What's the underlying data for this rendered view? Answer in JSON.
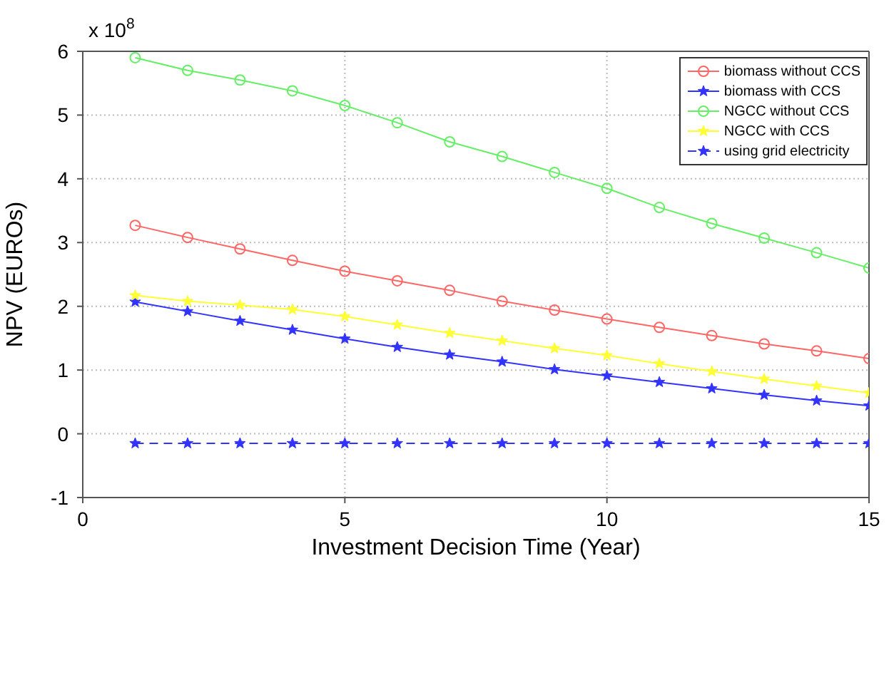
{
  "chart_data": {
    "type": "line",
    "xlabel": "Investment Decision Time (Year)",
    "ylabel": "NPV (EUROs)",
    "annotations": [
      "x 10$^{8}$"
    ],
    "x": [
      1,
      2,
      3,
      4,
      5,
      6,
      7,
      8,
      9,
      10,
      11,
      12,
      13,
      14,
      15
    ],
    "xlim": [
      0,
      15
    ],
    "xticks": [
      0,
      5,
      10,
      15
    ],
    "ylim": [
      -1,
      6
    ],
    "yticks": [
      -1,
      0,
      1,
      2,
      3,
      4,
      5,
      6
    ],
    "grid": true,
    "legend": "top right",
    "series": [
      {
        "name": "biomass without CCS",
        "color": "#ff6666",
        "marker": "circle",
        "line_style": "solid",
        "values": [
          3.27,
          3.08,
          2.9,
          2.72,
          2.55,
          2.4,
          2.25,
          2.08,
          1.94,
          1.8,
          1.67,
          1.54,
          1.41,
          1.3,
          1.18
        ]
      },
      {
        "name": "biomass with CCS",
        "color": "#3333ff",
        "marker": "star",
        "line_style": "solid",
        "values": [
          2.07,
          1.92,
          1.77,
          1.63,
          1.49,
          1.36,
          1.24,
          1.13,
          1.01,
          0.91,
          0.81,
          0.71,
          0.61,
          0.52,
          0.44
        ]
      },
      {
        "name": "NGCC without CCS",
        "color": "#66ee66",
        "marker": "circle",
        "line_style": "solid",
        "values": [
          5.9,
          5.7,
          5.55,
          5.38,
          5.15,
          4.88,
          4.58,
          4.35,
          4.1,
          3.85,
          3.55,
          3.3,
          3.07,
          2.84,
          2.6
        ]
      },
      {
        "name": "NGCC with CCS",
        "color": "#ffff33",
        "marker": "star",
        "line_style": "solid",
        "values": [
          2.17,
          2.08,
          2.02,
          1.95,
          1.84,
          1.71,
          1.58,
          1.46,
          1.34,
          1.23,
          1.1,
          0.98,
          0.86,
          0.75,
          0.64
        ]
      },
      {
        "name": "using grid electricity",
        "color": "#3333ff",
        "marker": "star",
        "line_style": "dashed",
        "values": [
          -0.15,
          -0.15,
          -0.15,
          -0.15,
          -0.15,
          -0.15,
          -0.15,
          -0.15,
          -0.15,
          -0.15,
          -0.15,
          -0.15,
          -0.15,
          -0.15,
          -0.15
        ]
      }
    ]
  }
}
